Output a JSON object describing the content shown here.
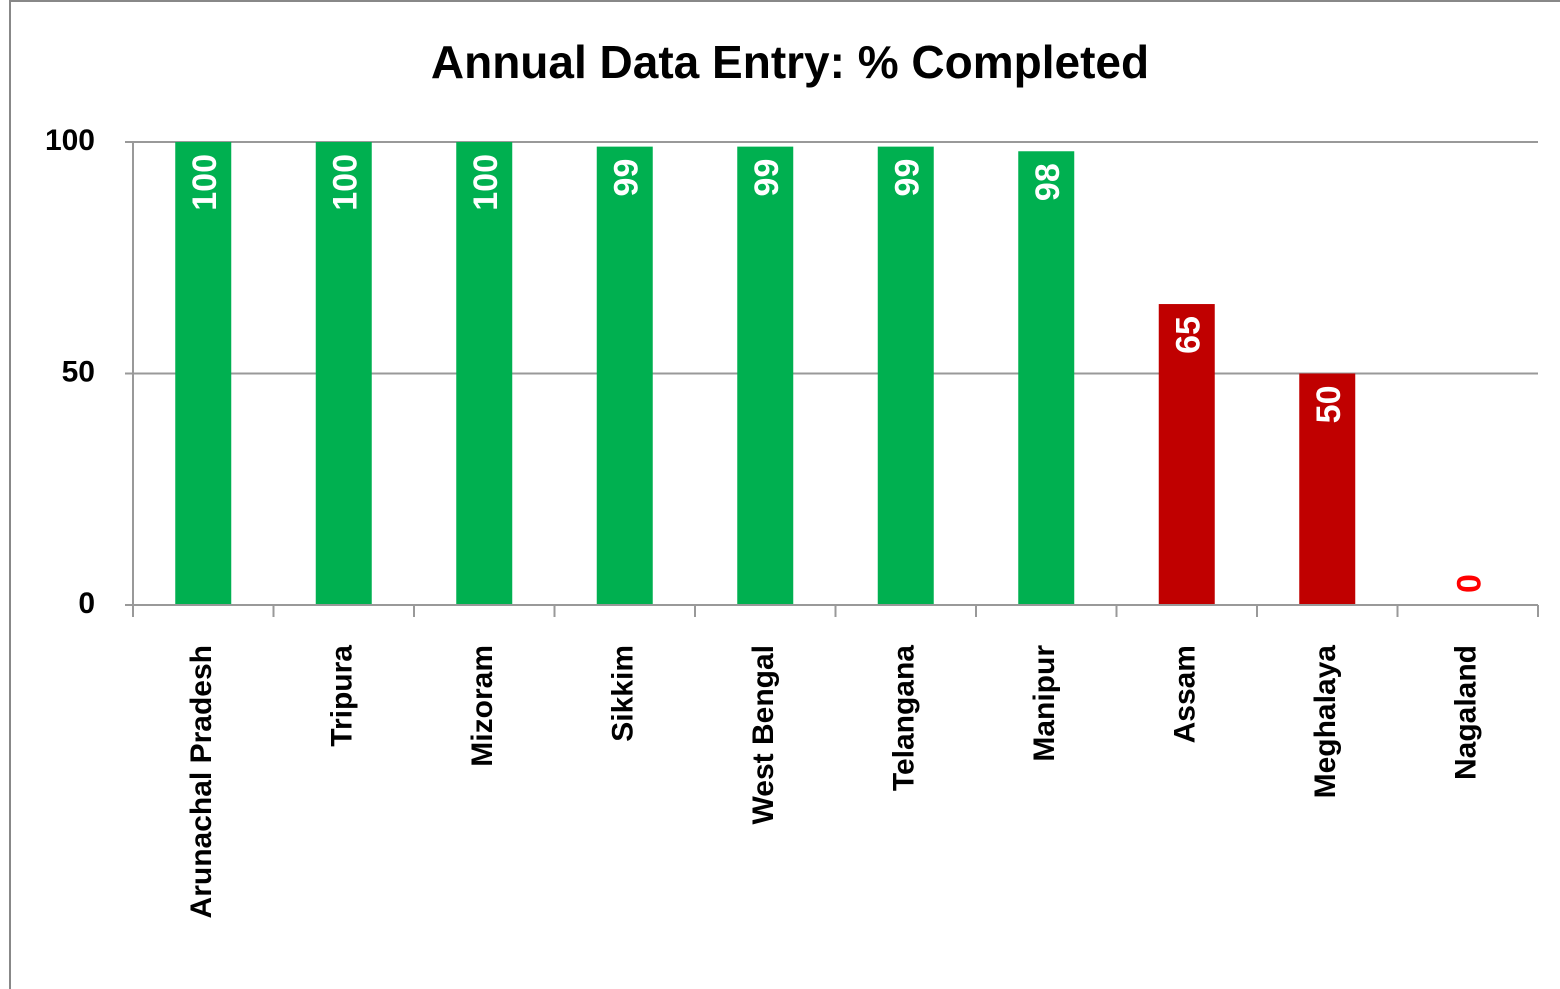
{
  "chart_data": {
    "type": "bar",
    "title": "Annual Data Entry: % Completed",
    "categories": [
      "Arunachal Pradesh",
      "Tripura",
      "Mizoram",
      "Sikkim",
      "West Bengal",
      "Telangana",
      "Manipur",
      "Assam",
      "Meghalaya",
      "Nagaland"
    ],
    "values": [
      100,
      100,
      100,
      99,
      99,
      99,
      98,
      65,
      50,
      0
    ],
    "colors": [
      "#00b050",
      "#00b050",
      "#00b050",
      "#00b050",
      "#00b050",
      "#00b050",
      "#00b050",
      "#c00000",
      "#c00000",
      "#ff0000"
    ],
    "ylim": [
      0,
      100
    ],
    "yticks": [
      0,
      50,
      100
    ],
    "grid": true
  }
}
